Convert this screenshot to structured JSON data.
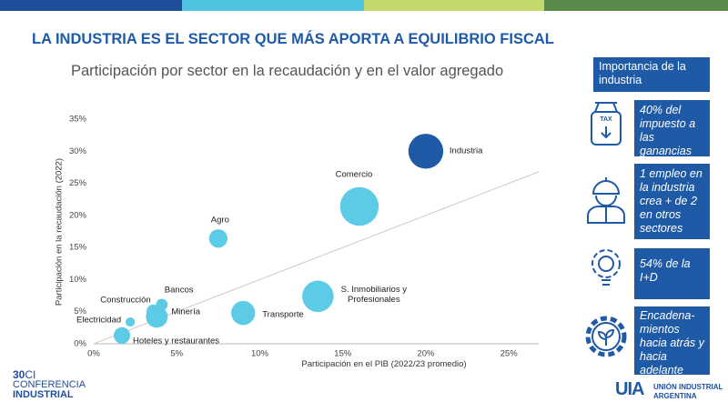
{
  "header": {
    "title": "LA INDUSTRIA ES EL SECTOR QUE MÁS APORTA A EQUILIBRIO FISCAL",
    "subtitle": "Participación por sector en la recaudación y en el valor agregado"
  },
  "chart_data": {
    "type": "scatter",
    "x_label": "Participación en el PIB (2022/23 promedio)",
    "y_label": "Participación en la recaudación (2022)",
    "color": "#5bcbe6",
    "highlight_color": "#1f5aa6",
    "categories": [
      "Industria",
      "Comercio",
      "Agro",
      "S. Inmobiliarios y Profesionales",
      "Transporte",
      "Minería",
      "Bancos",
      "Construcción",
      "Electricidad",
      "Hoteles y restaurantes"
    ],
    "x": [
      20.0,
      16.0,
      7.5,
      13.5,
      9.0,
      3.8,
      4.1,
      3.6,
      2.2,
      1.7
    ],
    "values": [
      30.0,
      21.4,
      16.4,
      7.4,
      4.8,
      4.2,
      6.1,
      5.0,
      3.4,
      1.3
    ],
    "sizes": [
      36,
      44,
      10,
      29,
      17,
      14,
      4,
      6,
      2.5,
      8
    ],
    "xlim": [
      0,
      26.8
    ],
    "ylim": [
      0,
      35
    ],
    "xticks": [
      {
        "value": 0,
        "label": "0%"
      },
      {
        "value": 5,
        "label": "5%"
      },
      {
        "value": 10,
        "label": "10%"
      },
      {
        "value": 15,
        "label": "15%"
      },
      {
        "value": 20,
        "label": "20%"
      },
      {
        "value": 25,
        "label": "25%"
      }
    ],
    "yticks": [
      {
        "value": 0,
        "label": "0%"
      },
      {
        "value": 5,
        "label": "5%"
      },
      {
        "value": 10,
        "label": "10%"
      },
      {
        "value": 15,
        "label": "15%"
      },
      {
        "value": 20,
        "label": "20%"
      },
      {
        "value": 25,
        "label": "25%"
      },
      {
        "value": 30,
        "label": "30%"
      },
      {
        "value": 35,
        "label": "35%"
      }
    ]
  },
  "panel": {
    "title": "Importancia de la industria",
    "items": [
      "40% del impuesto a las ganancias",
      "1 empleo en la industria crea + de 2 en otros sectores",
      "54% de la I+D",
      "Encadena-mientos hacia atrás y hacia adelante"
    ],
    "icon_label": "TAX"
  },
  "footer": {
    "event_number": "30",
    "event_ci": "CI",
    "event_line1": "CONFERENCIA",
    "event_line2": "INDUSTRIAL",
    "org_mark": "UIA",
    "org_line1": "UNIÓN INDUSTRIAL",
    "org_line2": "ARGENTINA"
  }
}
